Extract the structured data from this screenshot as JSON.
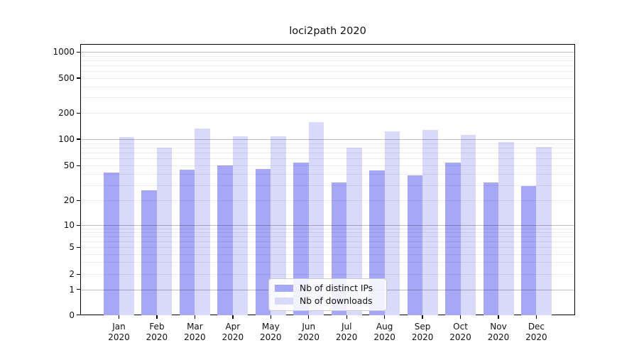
{
  "title": "loci2path 2020",
  "legend": {
    "items": [
      {
        "label": "Nb of distinct IPs",
        "color": "#a6a7f6"
      },
      {
        "label": "Nb of downloads",
        "color": "#d9daf9"
      }
    ]
  },
  "chart_data": {
    "type": "bar",
    "title": "loci2path 2020",
    "categories": [
      "Jan",
      "Feb",
      "Mar",
      "Apr",
      "May",
      "Jun",
      "Jul",
      "Aug",
      "Sep",
      "Oct",
      "Nov",
      "Dec"
    ],
    "year_label": "2020",
    "series": [
      {
        "name": "Nb of distinct IPs",
        "color": "#a6a7f6",
        "values": [
          42,
          26,
          45,
          50,
          46,
          54,
          32,
          44,
          39,
          54,
          32,
          29
        ]
      },
      {
        "name": "Nb of downloads",
        "color": "#d9daf9",
        "values": [
          105,
          80,
          134,
          108,
          108,
          157,
          80,
          124,
          128,
          113,
          93,
          82
        ]
      }
    ],
    "xlabel": "",
    "ylabel": "",
    "yscale": "asinh (log-like, linear near 0)",
    "y_ticks": [
      0,
      1,
      2,
      5,
      10,
      20,
      50,
      100,
      200,
      500,
      1000
    ],
    "ylim": [
      0,
      1250
    ],
    "grid": true,
    "grid_over_bars": true,
    "decade_gridline_color": "#b9b9b9",
    "minor_gridline_color": "#ececec",
    "legend_position": "lower center"
  }
}
